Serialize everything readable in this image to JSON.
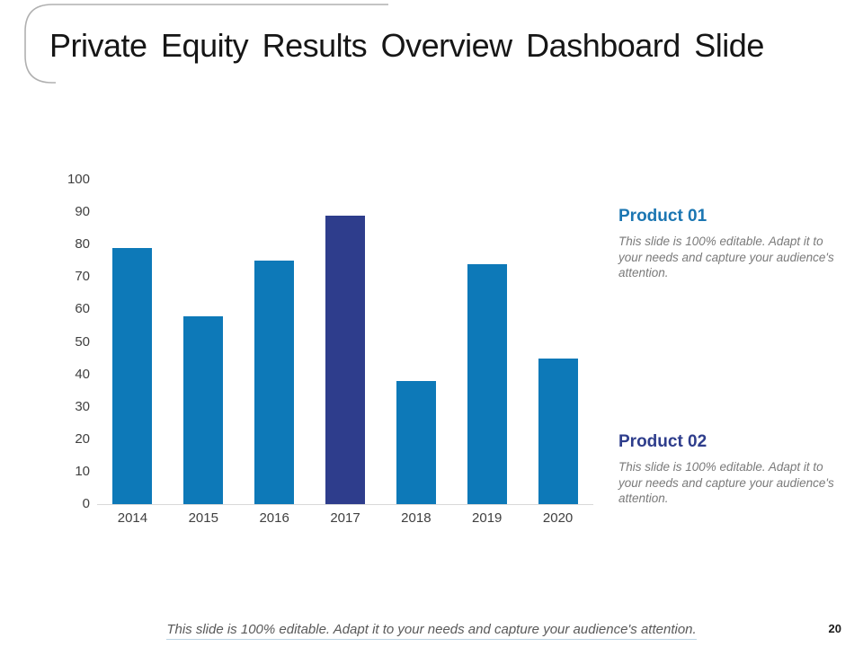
{
  "slide": {
    "title": "Private Equity Results Overview Dashboard Slide",
    "footer": "This slide is 100% editable. Adapt it to your needs and capture your audience's attention.",
    "page_number": "20"
  },
  "products": [
    {
      "heading": "Product 01",
      "heading_color": "#1b76b2",
      "body": "This slide is 100% editable. Adapt it to your needs and capture your audience's attention."
    },
    {
      "heading": "Product 02",
      "heading_color": "#2e3d8c",
      "body": "This slide is 100% editable. Adapt it to your needs and capture your audience's attention."
    }
  ],
  "colors": {
    "bar": "#0d79b8",
    "bar_highlight": "#2e3d8c",
    "axis_text": "#404040",
    "axis_line": "#d9d9d9",
    "accent_curve": "#b0b0b0"
  },
  "chart_data": {
    "type": "bar",
    "categories": [
      "2014",
      "2015",
      "2016",
      "2017",
      "2018",
      "2019",
      "2020"
    ],
    "values": [
      79,
      58,
      75,
      89,
      38,
      74,
      45
    ],
    "highlight_index": 3,
    "title": "",
    "xlabel": "",
    "ylabel": "",
    "ylim": [
      0,
      100
    ],
    "ytick_step": 10,
    "grid": false,
    "legend": false
  }
}
